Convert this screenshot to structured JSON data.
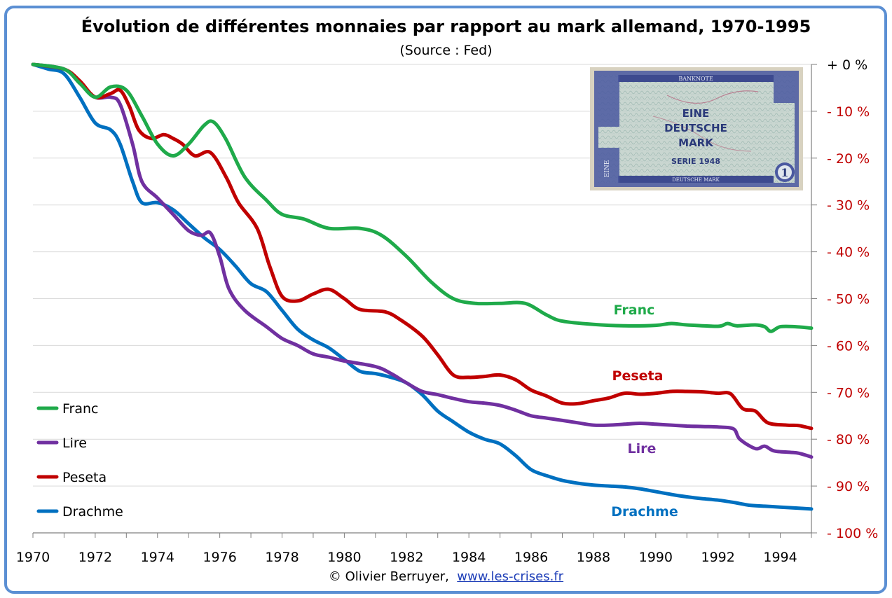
{
  "title": "Évolution de différentes monnaies par rapport au mark allemand, 1970-1995",
  "subtitle": "(Source : Fed)",
  "credit": {
    "prefix": "© Olivier Berruyer,",
    "link_text": "www.les-crises.fr"
  },
  "banknote": {
    "header": "BANKNOTE",
    "line1": "EINE",
    "line2": "DEUTSCHE",
    "line3": "MARK",
    "serie": "SERIE 1948",
    "footer": "DEUTSCHE MARK",
    "numeral": "1",
    "word": "EINE"
  },
  "chart_data": {
    "type": "line",
    "title": "Évolution de différentes monnaies par rapport au mark allemand, 1970-1995",
    "xlabel": "",
    "ylabel": "",
    "xlim": [
      1970,
      1995
    ],
    "ylim": [
      -100,
      0
    ],
    "grid": true,
    "y_axis_side": "right",
    "x_ticks": [
      "1970",
      "1972",
      "1974",
      "1976",
      "1978",
      "1980",
      "1982",
      "1984",
      "1986",
      "1988",
      "1990",
      "1992",
      "1994"
    ],
    "y_ticks": [
      {
        "value": 0,
        "label": "+ 0 %"
      },
      {
        "value": -10,
        "label": "- 10 %"
      },
      {
        "value": -20,
        "label": "- 20 %"
      },
      {
        "value": -30,
        "label": "- 30 %"
      },
      {
        "value": -40,
        "label": "- 40 %"
      },
      {
        "value": -50,
        "label": "- 50 %"
      },
      {
        "value": -60,
        "label": "- 60 %"
      },
      {
        "value": -70,
        "label": "- 70 %"
      },
      {
        "value": -80,
        "label": "- 80 %"
      },
      {
        "value": -90,
        "label": "- 90 %"
      },
      {
        "value": -100,
        "label": "- 100 %"
      }
    ],
    "legend_position": "bottom-left",
    "series": [
      {
        "name": "Franc",
        "color": "#1faa4a",
        "end_label": "Franc",
        "points": [
          [
            1970,
            0
          ],
          [
            1971,
            -1
          ],
          [
            1971.5,
            -4
          ],
          [
            1972,
            -7
          ],
          [
            1972.5,
            -4.8
          ],
          [
            1973,
            -5.5
          ],
          [
            1973.5,
            -11
          ],
          [
            1974,
            -17
          ],
          [
            1974.5,
            -19.5
          ],
          [
            1975,
            -17
          ],
          [
            1975.5,
            -13
          ],
          [
            1975.8,
            -12.3
          ],
          [
            1976.2,
            -16
          ],
          [
            1976.8,
            -24
          ],
          [
            1977.5,
            -29
          ],
          [
            1978,
            -32
          ],
          [
            1978.7,
            -33
          ],
          [
            1979.5,
            -35
          ],
          [
            1980.5,
            -35
          ],
          [
            1981.2,
            -36.5
          ],
          [
            1982,
            -41
          ],
          [
            1982.8,
            -46.5
          ],
          [
            1983.5,
            -50
          ],
          [
            1984.2,
            -51
          ],
          [
            1985,
            -51
          ],
          [
            1985.8,
            -51
          ],
          [
            1986.5,
            -53.5
          ],
          [
            1987,
            -54.8
          ],
          [
            1988,
            -55.5
          ],
          [
            1989,
            -55.8
          ],
          [
            1990,
            -55.7
          ],
          [
            1990.5,
            -55.3
          ],
          [
            1991,
            -55.6
          ],
          [
            1992,
            -55.9
          ],
          [
            1992.3,
            -55.3
          ],
          [
            1992.6,
            -55.8
          ],
          [
            1993.2,
            -55.6
          ],
          [
            1993.5,
            -56
          ],
          [
            1993.7,
            -57
          ],
          [
            1994,
            -56
          ],
          [
            1994.5,
            -56
          ],
          [
            1995,
            -56.3
          ]
        ]
      },
      {
        "name": "Lire",
        "color": "#7030a0",
        "end_label": "Lire",
        "points": [
          [
            1970,
            0
          ],
          [
            1971,
            -1
          ],
          [
            1971.5,
            -4
          ],
          [
            1972,
            -7
          ],
          [
            1972.5,
            -7
          ],
          [
            1972.8,
            -8.5
          ],
          [
            1973.2,
            -17
          ],
          [
            1973.5,
            -25
          ],
          [
            1974,
            -28.5
          ],
          [
            1974.5,
            -32
          ],
          [
            1975,
            -35.5
          ],
          [
            1975.4,
            -36.5
          ],
          [
            1975.7,
            -36
          ],
          [
            1976,
            -41
          ],
          [
            1976.3,
            -48
          ],
          [
            1976.8,
            -52.5
          ],
          [
            1977.5,
            -56
          ],
          [
            1978,
            -58.5
          ],
          [
            1978.5,
            -60
          ],
          [
            1979,
            -61.8
          ],
          [
            1979.5,
            -62.5
          ],
          [
            1980,
            -63.3
          ],
          [
            1981,
            -64.5
          ],
          [
            1981.5,
            -66
          ],
          [
            1982,
            -68
          ],
          [
            1982.5,
            -69.8
          ],
          [
            1983,
            -70.5
          ],
          [
            1983.5,
            -71.3
          ],
          [
            1984,
            -72
          ],
          [
            1984.5,
            -72.3
          ],
          [
            1985,
            -72.8
          ],
          [
            1985.5,
            -73.8
          ],
          [
            1986,
            -75
          ],
          [
            1986.5,
            -75.5
          ],
          [
            1987,
            -76
          ],
          [
            1987.5,
            -76.5
          ],
          [
            1988,
            -77
          ],
          [
            1988.5,
            -77
          ],
          [
            1989,
            -76.8
          ],
          [
            1989.5,
            -76.6
          ],
          [
            1990,
            -76.8
          ],
          [
            1990.5,
            -77
          ],
          [
            1991,
            -77.2
          ],
          [
            1991.5,
            -77.3
          ],
          [
            1992,
            -77.4
          ],
          [
            1992.5,
            -77.8
          ],
          [
            1992.7,
            -80
          ],
          [
            1993.2,
            -82
          ],
          [
            1993.5,
            -81.5
          ],
          [
            1993.8,
            -82.5
          ],
          [
            1994.3,
            -82.8
          ],
          [
            1994.6,
            -83
          ],
          [
            1995,
            -83.8
          ]
        ]
      },
      {
        "name": "Peseta",
        "color": "#c00000",
        "end_label": "Peseta",
        "points": [
          [
            1970,
            0
          ],
          [
            1971,
            -1
          ],
          [
            1971.5,
            -3.5
          ],
          [
            1972,
            -7
          ],
          [
            1972.5,
            -6.2
          ],
          [
            1972.8,
            -5.5
          ],
          [
            1973.1,
            -9
          ],
          [
            1973.4,
            -14
          ],
          [
            1973.8,
            -15.8
          ],
          [
            1974.2,
            -15
          ],
          [
            1974.5,
            -15.8
          ],
          [
            1974.8,
            -17
          ],
          [
            1975.2,
            -19.5
          ],
          [
            1975.7,
            -18.8
          ],
          [
            1976.2,
            -24
          ],
          [
            1976.6,
            -29.5
          ],
          [
            1977.2,
            -35
          ],
          [
            1977.6,
            -43
          ],
          [
            1978,
            -49.5
          ],
          [
            1978.5,
            -50.5
          ],
          [
            1979,
            -49
          ],
          [
            1979.5,
            -48
          ],
          [
            1980,
            -50
          ],
          [
            1980.5,
            -52.3
          ],
          [
            1981.3,
            -52.8
          ],
          [
            1981.8,
            -54.5
          ],
          [
            1982.5,
            -58
          ],
          [
            1983,
            -62
          ],
          [
            1983.5,
            -66.3
          ],
          [
            1984,
            -66.8
          ],
          [
            1984.5,
            -66.6
          ],
          [
            1985,
            -66.3
          ],
          [
            1985.5,
            -67.3
          ],
          [
            1986,
            -69.5
          ],
          [
            1986.5,
            -70.8
          ],
          [
            1987,
            -72.3
          ],
          [
            1987.5,
            -72.4
          ],
          [
            1988,
            -71.8
          ],
          [
            1988.5,
            -71.2
          ],
          [
            1989,
            -70.2
          ],
          [
            1989.5,
            -70.4
          ],
          [
            1990,
            -70.2
          ],
          [
            1990.5,
            -69.8
          ],
          [
            1991,
            -69.8
          ],
          [
            1991.5,
            -69.9
          ],
          [
            1992,
            -70.2
          ],
          [
            1992.4,
            -70.3
          ],
          [
            1992.8,
            -73.5
          ],
          [
            1993.2,
            -74
          ],
          [
            1993.6,
            -76.5
          ],
          [
            1994.2,
            -77
          ],
          [
            1994.6,
            -77.1
          ],
          [
            1995,
            -77.7
          ]
        ]
      },
      {
        "name": "Drachme",
        "color": "#0070c0",
        "end_label": "Drachme",
        "points": [
          [
            1970,
            0
          ],
          [
            1970.5,
            -1
          ],
          [
            1971,
            -2
          ],
          [
            1971.5,
            -7
          ],
          [
            1972,
            -12.5
          ],
          [
            1972.5,
            -14
          ],
          [
            1972.8,
            -17
          ],
          [
            1973.2,
            -25
          ],
          [
            1973.5,
            -29.5
          ],
          [
            1974,
            -29.5
          ],
          [
            1974.5,
            -31
          ],
          [
            1975,
            -34
          ],
          [
            1975.5,
            -37
          ],
          [
            1976,
            -39.5
          ],
          [
            1976.5,
            -43
          ],
          [
            1977,
            -46.8
          ],
          [
            1977.5,
            -48.5
          ],
          [
            1978,
            -52.5
          ],
          [
            1978.5,
            -56.5
          ],
          [
            1979,
            -58.8
          ],
          [
            1979.5,
            -60.5
          ],
          [
            1980,
            -63
          ],
          [
            1980.5,
            -65.5
          ],
          [
            1981,
            -66
          ],
          [
            1981.5,
            -66.8
          ],
          [
            1982,
            -68
          ],
          [
            1982.5,
            -70.5
          ],
          [
            1983,
            -74
          ],
          [
            1983.5,
            -76.3
          ],
          [
            1984,
            -78.5
          ],
          [
            1984.5,
            -80
          ],
          [
            1985,
            -81
          ],
          [
            1985.5,
            -83.5
          ],
          [
            1986,
            -86.5
          ],
          [
            1986.5,
            -87.8
          ],
          [
            1987,
            -88.8
          ],
          [
            1987.5,
            -89.4
          ],
          [
            1988,
            -89.8
          ],
          [
            1988.5,
            -90
          ],
          [
            1989,
            -90.2
          ],
          [
            1989.5,
            -90.6
          ],
          [
            1990,
            -91.2
          ],
          [
            1990.5,
            -91.8
          ],
          [
            1991,
            -92.3
          ],
          [
            1991.5,
            -92.7
          ],
          [
            1992,
            -93
          ],
          [
            1992.5,
            -93.5
          ],
          [
            1993,
            -94.1
          ],
          [
            1993.5,
            -94.3
          ],
          [
            1994,
            -94.5
          ],
          [
            1994.5,
            -94.7
          ],
          [
            1995,
            -94.9
          ]
        ]
      }
    ]
  }
}
